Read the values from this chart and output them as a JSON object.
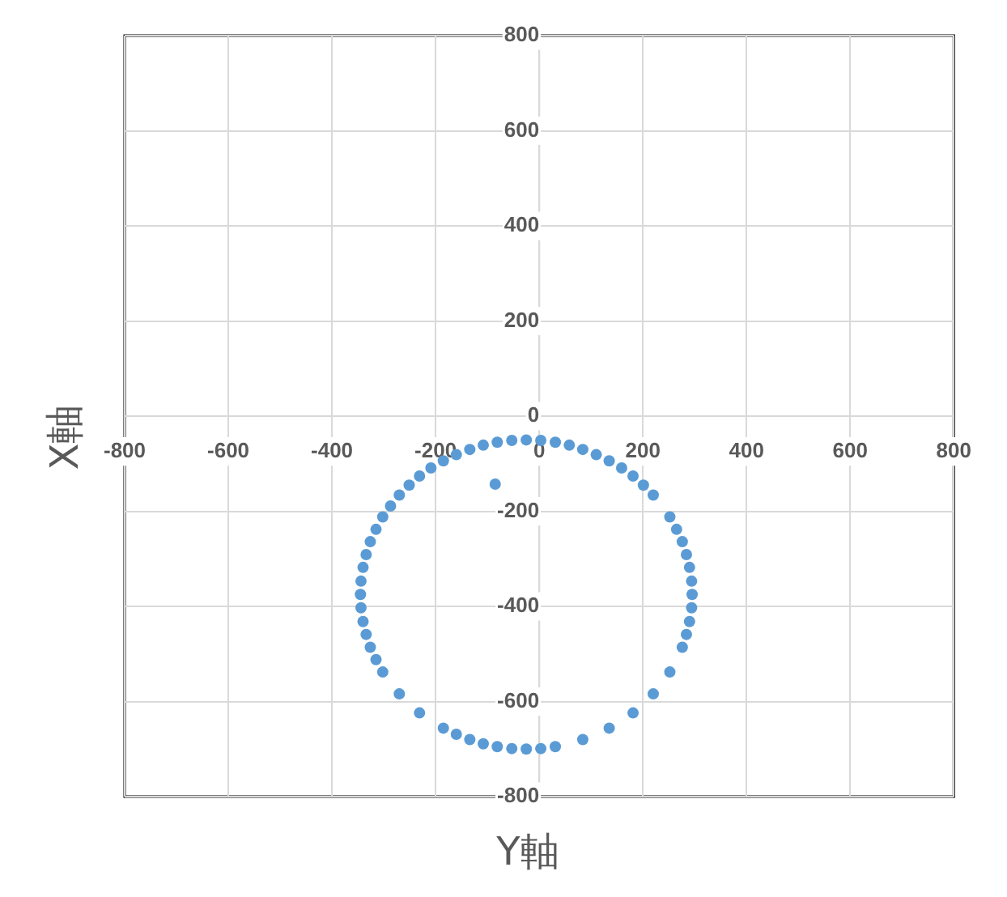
{
  "chart_data": {
    "type": "scatter",
    "xlabel": "Y軸",
    "ylabel": "X軸",
    "xlim": [
      -800,
      800
    ],
    "ylim": [
      -800,
      800
    ],
    "xticks": [
      -800,
      -600,
      -400,
      -200,
      0,
      200,
      400,
      600,
      800
    ],
    "yticks": [
      -800,
      -600,
      -400,
      -200,
      0,
      200,
      400,
      600,
      800
    ],
    "grid": true,
    "marker": "circle",
    "legend": false,
    "series": [
      {
        "color": "#5b9bd5",
        "x": [
          295,
          294,
          290,
          284,
          276,
          265,
          252,
          220,
          201,
          181,
          159,
          135,
          110,
          84,
          58,
          31,
          3,
          -25,
          -53,
          -81,
          -108,
          -134,
          -160,
          -185,
          -209,
          -231,
          -251,
          -270,
          -287,
          -302,
          -315,
          -326,
          -334,
          -340,
          -344,
          -345,
          -344,
          -340,
          -334,
          -326,
          -315,
          -302,
          -270,
          -231,
          -185,
          -160,
          -134,
          -108,
          -81,
          -53,
          -25,
          3,
          31,
          84,
          135,
          181,
          220,
          252,
          276,
          284,
          290,
          294,
          -85
        ],
        "values": [
          -375,
          -347,
          -318,
          -291,
          -264,
          -238,
          -212,
          -166,
          -145,
          -126,
          -109,
          -94,
          -81,
          -70,
          -61,
          -55,
          -51,
          -50,
          -51,
          -55,
          -61,
          -70,
          -81,
          -94,
          -109,
          -126,
          -145,
          -166,
          -189,
          -212,
          -238,
          -264,
          -291,
          -318,
          -347,
          -375,
          -403,
          -432,
          -459,
          -486,
          -512,
          -538,
          -584,
          -624,
          -656,
          -669,
          -680,
          -689,
          -695,
          -699,
          -700,
          -699,
          -695,
          -680,
          -656,
          -624,
          -584,
          -538,
          -486,
          -459,
          -432,
          -403,
          -143
        ]
      }
    ]
  }
}
